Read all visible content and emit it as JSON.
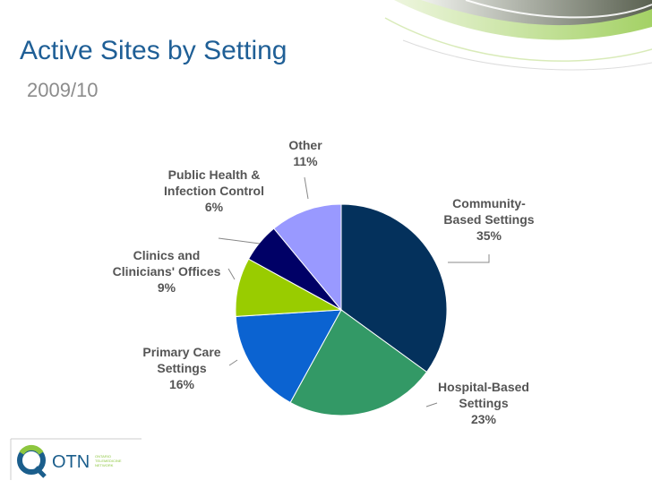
{
  "slide": {
    "title": "Active Sites by Setting",
    "subtitle": "2009/10"
  },
  "logo": {
    "name": "OTN",
    "tagline_lines": [
      "ONTARIO",
      "TELEMEDICINE",
      "NETWORK"
    ]
  },
  "colors": {
    "title": "#1f5f96",
    "subtitle": "#8c8c8c",
    "accent_green": "#8dc63f",
    "accent_grey": "#555555"
  },
  "chart_data": {
    "type": "pie",
    "title": "",
    "legend": "none",
    "slices": [
      {
        "label_lines": [
          "Community-",
          "Based Settings"
        ],
        "value": 35,
        "value_label": "35%",
        "color": "#04315c"
      },
      {
        "label_lines": [
          "Hospital-Based",
          "Settings"
        ],
        "value": 23,
        "value_label": "23%",
        "color": "#339966"
      },
      {
        "label_lines": [
          "Primary Care",
          "Settings"
        ],
        "value": 16,
        "value_label": "16%",
        "color": "#0b63d1"
      },
      {
        "label_lines": [
          "Clinics and",
          "Clinicians' Offices"
        ],
        "value": 9,
        "value_label": "9%",
        "color": "#99cc00"
      },
      {
        "label_lines": [
          "Public Health &",
          "Infection Control"
        ],
        "value": 6,
        "value_label": "6%",
        "color": "#000066"
      },
      {
        "label_lines": [
          "Other"
        ],
        "value": 11,
        "value_label": "11%",
        "color": "#9999ff"
      }
    ]
  }
}
